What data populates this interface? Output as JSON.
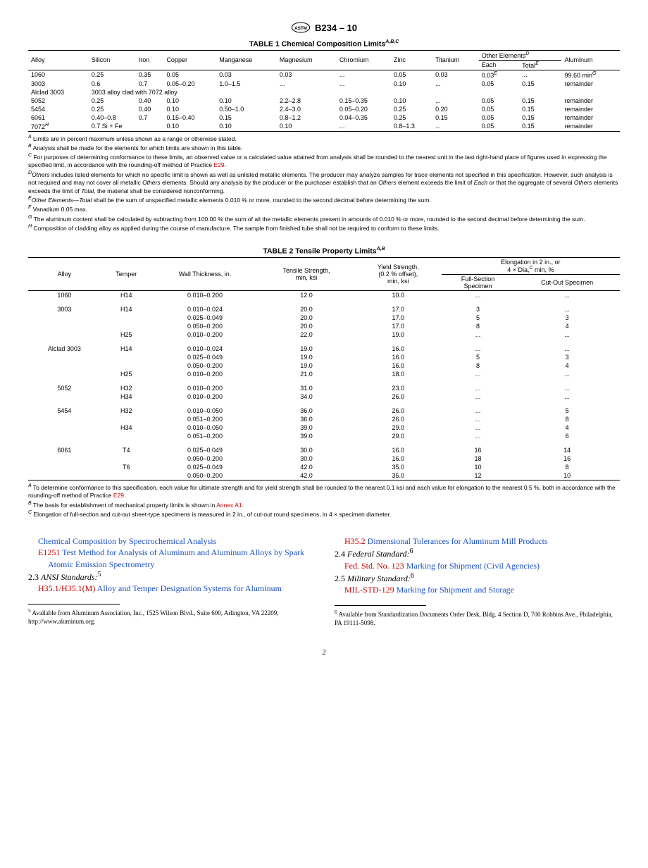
{
  "doc": {
    "designation": "B234 – 10",
    "page": "2"
  },
  "t1": {
    "title": "TABLE 1 Chemical Composition Limits",
    "title_sup": "A,B,C",
    "cols": [
      "Alloy",
      "Silicon",
      "Iron",
      "Copper",
      "Manganese",
      "Magnesium",
      "Chromium",
      "Zinc",
      "Titanium"
    ],
    "other_hdr": "Other Elements",
    "other_sup": "D",
    "each": "Each",
    "total": "Total",
    "total_sup": "E",
    "alum": "Aluminum",
    "rows": [
      [
        "1060",
        "0.25",
        "0.35",
        "0.05",
        "0.03",
        "0.03",
        "...",
        "0.05",
        "0.03",
        "0.03",
        "...",
        "99.60 min"
      ],
      [
        "3003",
        "0.6",
        "0.7",
        "0.05–0.20",
        "1.0–1.5",
        "...",
        "...",
        "0.10",
        "...",
        "0.05",
        "0.15",
        "remainder"
      ],
      [
        "Alclad 3003",
        "",
        "",
        "",
        "",
        "",
        "",
        "",
        "",
        "",
        "",
        ""
      ],
      [
        "5052",
        "0.25",
        "0.40",
        "0.10",
        "0.10",
        "2.2–2.8",
        "0.15–0.35",
        "0.10",
        "...",
        "0.05",
        "0.15",
        "remainder"
      ],
      [
        "5454",
        "0.25",
        "0.40",
        "0.10",
        "0.50–1.0",
        "2.4–3.0",
        "0.05–0.20",
        "0.25",
        "0.20",
        "0.05",
        "0.15",
        "remainder"
      ],
      [
        "6061",
        "0.40–0.8",
        "0.7",
        "0.15–0.40",
        "0.15",
        "0.8–1.2",
        "0.04–0.35",
        "0.25",
        "0.15",
        "0.05",
        "0.15",
        "remainder"
      ],
      [
        "7072",
        "",
        "",
        "0.10",
        "0.10",
        "0.10",
        "...",
        "0.8–1.3",
        "...",
        "0.05",
        "0.15",
        "remainder"
      ]
    ],
    "alclad_note": "3003 alloy clad with 7072 alloy",
    "r7072_si": "0.7 Si + Fe",
    "r7072_sup": "H",
    "r1060_each_sup": "E",
    "r1060_al_sup": "G",
    "footnotes": [
      [
        "A",
        " Limits are in percent maximum unless shown as a range or otherwise stated."
      ],
      [
        "B",
        " Analysis shall be made for the elements for which limits are shown in this table."
      ],
      [
        "C",
        " For purposes of determining conformance to these limits, an observed value or a calculated value attained from analysis shall be rounded to the nearest unit in the last right-hand place of figures used in expressing the specified limit, in accordance with the rounding-off method of Practice "
      ],
      [
        "D",
        "Others includes listed elements for which no specific limit is shown as well as unlisted metallic elements. The producer may analyze samples for trace elements not specified in this specification. However, such analysis is not required and may not cover all metallic Others elements. Should any analysis by the producer or the purchaser establish that an Others element exceeds the limit of Each or that the aggregate of several Others elements exceeds the limit of Total, the material shall be considered nonconforming."
      ],
      [
        "E",
        "Other Elements—Total shall be the sum of unspecified metallic elements 0.010 % or more, rounded to the second decimal before determining the sum."
      ],
      [
        "F",
        " Vanadium 0.05 max."
      ],
      [
        "G",
        " The aluminum content shall be calculated by subtracting from 100.00 % the sum of all the metallic elements present in amounts of 0.010 % or more, rounded to the second decimal before determining the sum."
      ],
      [
        "H",
        " Composition of cladding alloy as applied during the course of manufacture. The sample from finished tube shall not be required to conform to these limits."
      ]
    ],
    "e29": "E29"
  },
  "t2": {
    "title": "TABLE 2 Tensile Property Limits",
    "title_sup": "A,B",
    "h_alloy": "Alloy",
    "h_temper": "Temper",
    "h_wall": "Wall Thickness, in.",
    "h_tensile": "Tensile Strength,\nmin, ksi",
    "h_yield": "Yield Strength,\n(0.2 % offset),\nmin, ksi",
    "h_elong": "Elongation in 2 in., or\n4 × Dia,",
    "h_elong_sup": "C",
    "h_elong2": " min, %",
    "h_full": "Full-Section\nSpecimen",
    "h_cut": "Cut-Out Specimen",
    "groups": [
      {
        "alloy": "1060",
        "rows": [
          [
            "H14",
            "0.010–0.200",
            "12.0",
            "10.0",
            "...",
            "..."
          ]
        ]
      },
      {
        "alloy": "3003",
        "rows": [
          [
            "H14",
            "0.010–0.024",
            "20.0",
            "17.0",
            "3",
            "..."
          ],
          [
            "",
            "0.025–0.049",
            "20.0",
            "17.0",
            "5",
            "3"
          ],
          [
            "",
            "0.050–0.200",
            "20.0",
            "17.0",
            "8",
            "4"
          ],
          [
            "H25",
            "0.010–0.200",
            "22.0",
            "19.0",
            "...",
            "..."
          ]
        ]
      },
      {
        "alloy": "Alclad 3003",
        "rows": [
          [
            "H14",
            "0.010–0.024",
            "19.0",
            "16.0",
            "...",
            "..."
          ],
          [
            "",
            "0.025–0.049",
            "19.0",
            "16.0",
            "5",
            "3"
          ],
          [
            "",
            "0.050–0.200",
            "19.0",
            "16.0",
            "8",
            "4"
          ],
          [
            "H25",
            "0.010–0.200",
            "21.0",
            "18.0",
            "...",
            "..."
          ]
        ]
      },
      {
        "alloy": "5052",
        "rows": [
          [
            "H32",
            "0.010–0.200",
            "31.0",
            "23.0",
            "...",
            "..."
          ],
          [
            "H34",
            "0.010–0.200",
            "34.0",
            "26.0",
            "...",
            "..."
          ]
        ]
      },
      {
        "alloy": "5454",
        "rows": [
          [
            "H32",
            "0.010–0.050",
            "36.0",
            "26.0",
            "...",
            "5"
          ],
          [
            "",
            "0.051–0.200",
            "36.0",
            "26.0",
            "...",
            "8"
          ],
          [
            "H34",
            "0.010–0.050",
            "39.0",
            "29.0",
            "...",
            "4"
          ],
          [
            "",
            "0.051–0.200",
            "39.0",
            "29.0",
            "...",
            "6"
          ]
        ]
      },
      {
        "alloy": "6061",
        "rows": [
          [
            "T4",
            "0.025–0.049",
            "30.0",
            "16.0",
            "16",
            "14"
          ],
          [
            "",
            "0.050–0.200",
            "30.0",
            "16.0",
            "18",
            "16"
          ],
          [
            "T6",
            "0.025–0.049",
            "42.0",
            "35.0",
            "10",
            "8"
          ],
          [
            "",
            "0.050–0.200",
            "42.0",
            "35.0",
            "12",
            "10"
          ]
        ]
      }
    ],
    "footnotes": [
      [
        "A",
        " To determine conformance to this specification, each value for ultimate strength and for yield strength shall be rounded to the nearest 0.1 ksi and each value for elongation to the nearest 0.5 %, both in accordance with the rounding-off method of Practice "
      ],
      [
        "B",
        " The basis for establishment of mechanical property limits is shown in "
      ],
      [
        "C",
        " Elongation of full-section and cut-out sheet-type specimens is measured in 2 in., of cut-out round specimens, in 4 × specimen diameter."
      ]
    ],
    "e29": "E29",
    "annex": "Annex A1"
  },
  "refs": {
    "l1": "Chemical Composition by Spectrochemical Analysis",
    "l2a": "E1251",
    "l2b": " Test Method for Analysis of Aluminum and Aluminum Alloys by Spark Atomic Emission Spectrometry",
    "l3": "2.3 ",
    "l3i": "ANSI Standards:",
    "l3s": "5",
    "l4a": "H35.1/H35.1(M)",
    "l4b": " Alloy and Temper Designation Systems for Aluminum",
    "r1a": "H35.2",
    "r1b": "  Dimensional Tolerances for Aluminum Mill Products",
    "r2": "2.4 ",
    "r2i": "Federal Standard:",
    "r2s": "6",
    "r3a": "Fed. Std. No. 123",
    "r3b": " Marking for Shipment (Civil Agencies)",
    "r4": "2.5 ",
    "r4i": "Military Standard:",
    "r4s": "6",
    "r5a": "MIL-STD-129",
    "r5b": " Marking for Shipment and Storage",
    "fn5s": "5",
    "fn5": " Available from Aluminum Association, Inc., 1525 Wilson Blvd., Suite 600, Arlington, VA 22209, http://www.aluminum.org.",
    "fn6s": "6",
    "fn6": " Available from Standardization Documents Order Desk, Bldg. 4 Section D, 700 Robbins Ave., Philadelphia, PA 19111-5098."
  }
}
